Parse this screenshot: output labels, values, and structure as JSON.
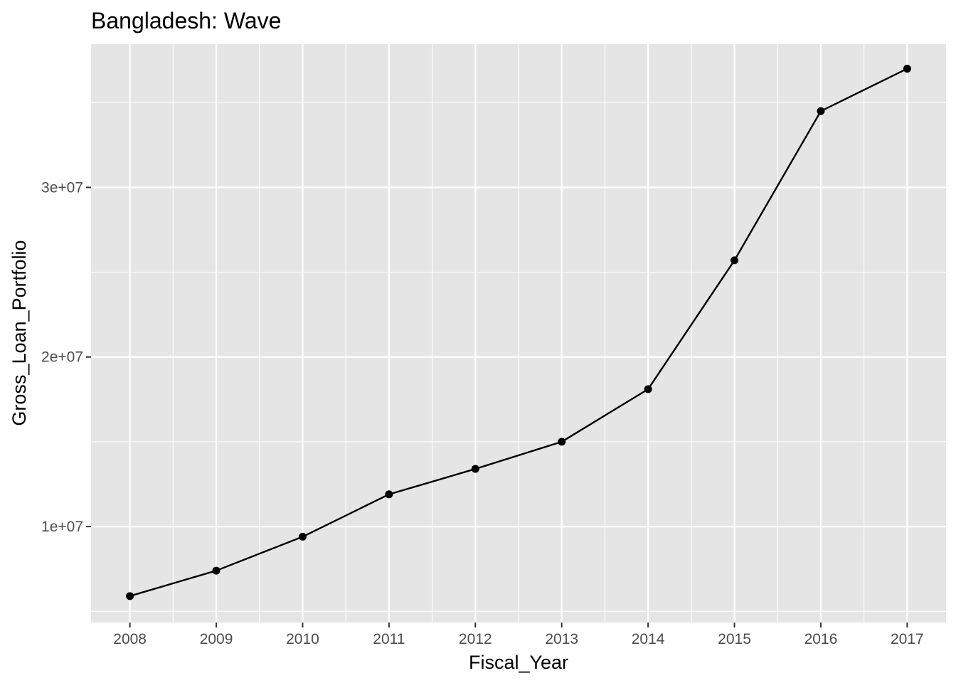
{
  "chart_data": {
    "type": "line",
    "title": "Bangladesh:  Wave",
    "xlabel": "Fiscal_Year",
    "ylabel": "Gross_Loan_Portfolio",
    "x": [
      2008,
      2009,
      2010,
      2011,
      2012,
      2013,
      2014,
      2015,
      2016,
      2017
    ],
    "x_tick_labels": [
      "2008",
      "2009",
      "2010",
      "2011",
      "2012",
      "2013",
      "2014",
      "2015",
      "2016",
      "2017"
    ],
    "series": [
      {
        "values": [
          5900000,
          7400000,
          9400000,
          11900000,
          13400000,
          15000000,
          18100000,
          25700000,
          34500000,
          37000000
        ]
      }
    ],
    "y_ticks": [
      10000000,
      20000000,
      30000000
    ],
    "y_tick_labels": [
      "1e+07",
      "2e+07",
      "3e+07"
    ],
    "xlim": [
      2007.55,
      2017.45
    ],
    "ylim": [
      4340000,
      38450000
    ],
    "grid": true,
    "show_points": true,
    "colors": {
      "panel_background": "#e5e5e5",
      "grid": "#ffffff",
      "line": "#000000",
      "point": "#000000",
      "tick_label": "#4d4d4d"
    }
  }
}
